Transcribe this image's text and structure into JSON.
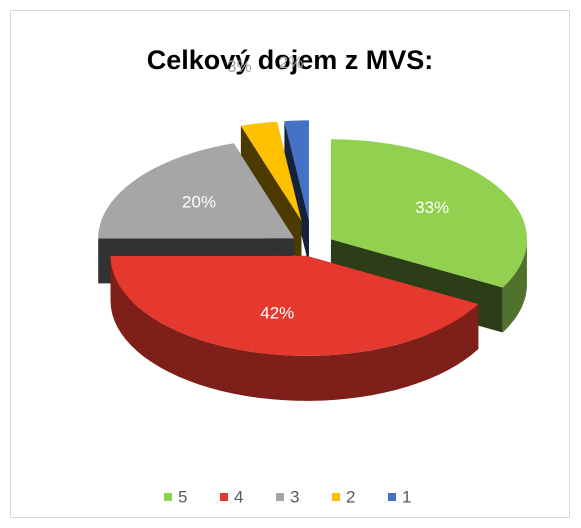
{
  "chart_data": {
    "type": "pie3d",
    "title": "Celkový dojem z MVS:",
    "categories": [
      "5",
      "4",
      "3",
      "2",
      "1"
    ],
    "values": [
      33,
      42,
      20,
      3,
      2
    ],
    "value_labels": [
      "33%",
      "42%",
      "20%",
      "3%",
      "2%"
    ],
    "colors": [
      "#92d050",
      "#e5392f",
      "#a6a6a6",
      "#ffc000",
      "#4472c4"
    ],
    "legend": "bottom"
  }
}
